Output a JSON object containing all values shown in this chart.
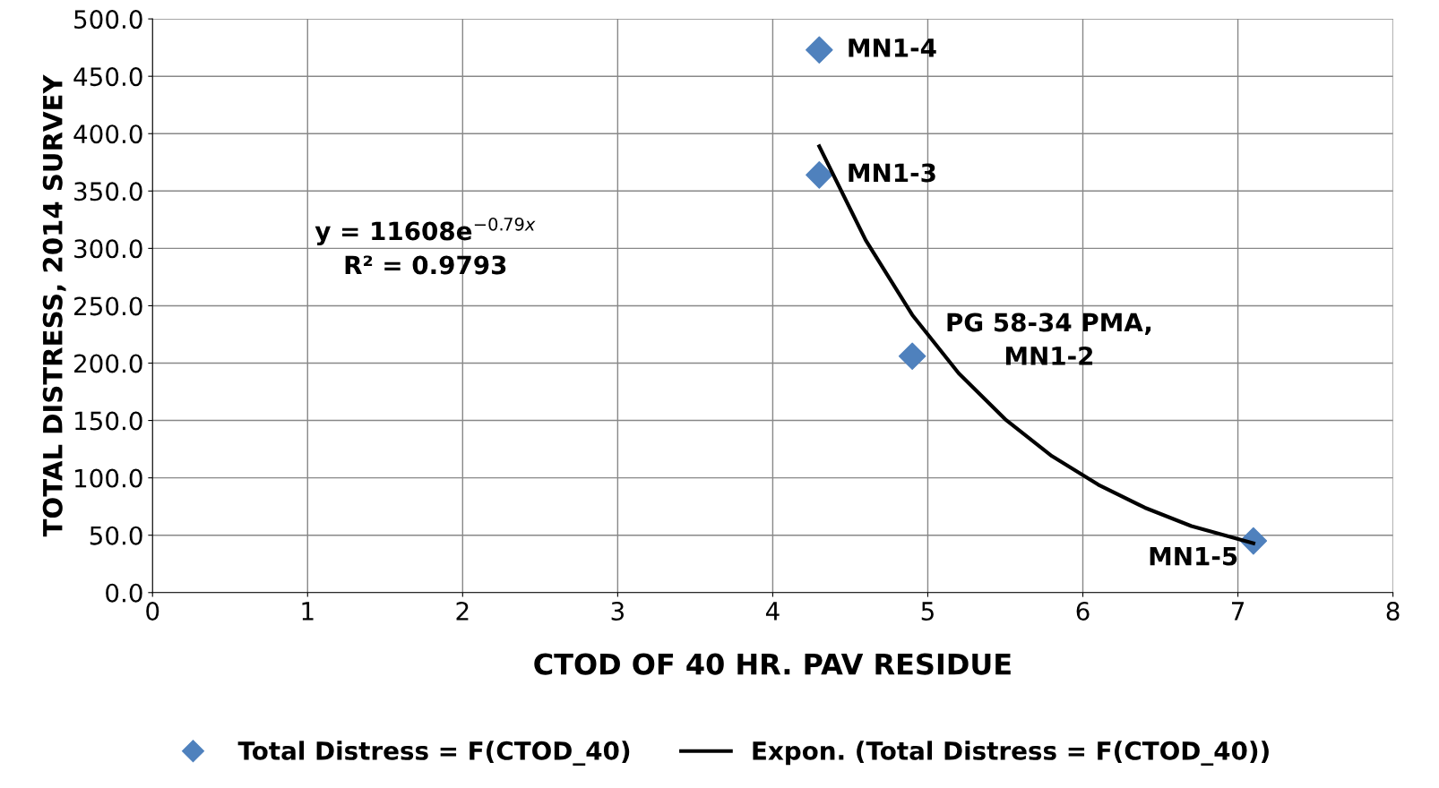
{
  "chart_data": {
    "type": "scatter",
    "xlabel": "CTOD OF 40 HR. PAV RESIDUE",
    "ylabel": "TOTAL DISTRESS, 2014 SURVEY",
    "series": [
      {
        "name": "Total Distress = F(CTOD_40)",
        "color": "#4f81bd",
        "marker": "diamond",
        "x": [
          4.3,
          4.3,
          4.9,
          7.1
        ],
        "values": [
          473,
          364,
          206,
          45
        ]
      },
      {
        "name": "Expon. (Total Distress = F(CTOD_40))",
        "type": "line",
        "color": "#000000",
        "marker": "none",
        "line_style": "solid",
        "x": [
          4.3,
          4.6,
          4.9,
          5.2,
          5.5,
          5.8,
          6.1,
          6.4,
          6.7,
          7.1
        ],
        "values": [
          389,
          307,
          242,
          191,
          151,
          119,
          94,
          74,
          58,
          43
        ]
      }
    ],
    "xlim": [
      0,
      8
    ],
    "xticks": [
      0,
      1,
      2,
      3,
      4,
      5,
      6,
      7,
      8
    ],
    "ylim": [
      0,
      500
    ],
    "yticks": [
      {
        "value": 0,
        "label": "0.0"
      },
      {
        "value": 50,
        "label": "50.0"
      },
      {
        "value": 100,
        "label": "100.0"
      },
      {
        "value": 150,
        "label": "150.0"
      },
      {
        "value": 200,
        "label": "200.0"
      },
      {
        "value": 250,
        "label": "250.0"
      },
      {
        "value": 300,
        "label": "300.0"
      },
      {
        "value": 350,
        "label": "350.0"
      },
      {
        "value": 400,
        "label": "400.0"
      },
      {
        "value": 450,
        "label": "450.0"
      },
      {
        "value": 500,
        "label": "500.0"
      }
    ],
    "annotations": [
      {
        "text": "MN1-4",
        "x": 4.3,
        "y": 473
      },
      {
        "text": "MN1-3",
        "x": 4.3,
        "y": 364
      },
      {
        "text": "PG 58-34 PMA,\nMN1-2",
        "x": 4.9,
        "y": 206
      },
      {
        "text": "MN1-5",
        "x": 7.1,
        "y": 45
      },
      "y = 11608e$^{−0.79x}$\nR² = 0.9793"
    ],
    "grid": true,
    "legend": "bottom"
  }
}
